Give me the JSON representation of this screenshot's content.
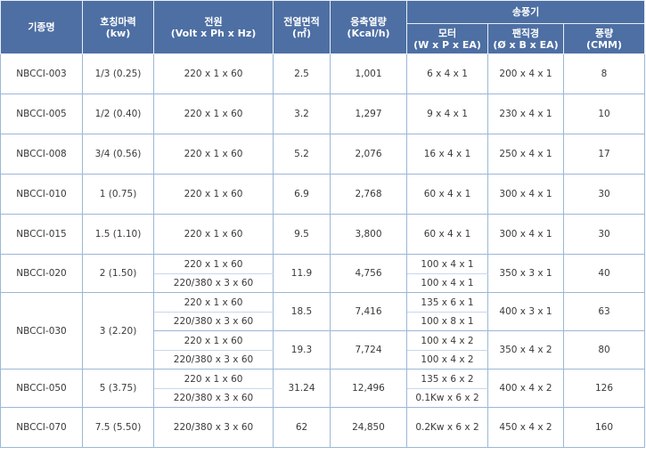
{
  "headers": {
    "model": "기종명",
    "hp_line1": "호칭마력",
    "hp_line2": "(kw)",
    "power_line1": "전원",
    "power_line2": "(Volt x Ph x Hz)",
    "area_line1": "전열면적",
    "area_line2": "(㎡)",
    "capacity_line1": "응축열량",
    "capacity_line2": "(Kcal/h)",
    "blower": "송풍기",
    "motor_line1": "모터",
    "motor_line2": "(W x P x EA)",
    "fan_line1": "팬직경",
    "fan_line2": "(Ø x B x EA)",
    "airflow_line1": "풍량",
    "airflow_line2": "(CMM)"
  },
  "rows": [
    {
      "model": "NBCCI-003",
      "hp": "1/3 (0.25)",
      "power": "220 x 1 x 60",
      "area": "2.5",
      "capacity": "1,001",
      "motor": "6 x 4 x 1",
      "fan": "200 x 4 x 1",
      "airflow": "8"
    },
    {
      "model": "NBCCI-005",
      "hp": "1/2 (0.40)",
      "power": "220 x 1 x 60",
      "area": "3.2",
      "capacity": "1,297",
      "motor": "9 x 4 x 1",
      "fan": "230 x 4 x 1",
      "airflow": "10"
    },
    {
      "model": "NBCCI-008",
      "hp": "3/4 (0.56)",
      "power": "220 x 1 x 60",
      "area": "5.2",
      "capacity": "2,076",
      "motor": "16 x 4 x 1",
      "fan": "250 x 4 x 1",
      "airflow": "17"
    },
    {
      "model": "NBCCI-010",
      "hp": "1 (0.75)",
      "power": "220 x 1 x 60",
      "area": "6.9",
      "capacity": "2,768",
      "motor": "60 x 4 x 1",
      "fan": "300 x 4 x 1",
      "airflow": "30"
    },
    {
      "model": "NBCCI-015",
      "hp": "1.5 (1.10)",
      "power": "220 x 1 x 60",
      "area": "9.5",
      "capacity": "3,800",
      "motor": "60 x 4 x 1",
      "fan": "300 x 4 x 1",
      "airflow": "30"
    },
    {
      "model": "NBCCI-020",
      "hp": "2 (1.50)",
      "power_a": "220 x 1 x 60",
      "power_b": "220/380 x 3 x 60",
      "area": "11.9",
      "capacity": "4,756",
      "motor_a": "100 x 4 x 1",
      "motor_b": "100 x 4 x 1",
      "fan": "350 x 3 x 1",
      "airflow": "40"
    },
    {
      "model": "NBCCI-030",
      "hp": "3 (2.20)",
      "power_a": "220 x 1 x 60",
      "power_b": "220/380 x 3 x 60",
      "area_a": "18.5",
      "capacity_a": "7,416",
      "motor_a": "135 x 6 x 1",
      "motor_b": "100 x 8 x 1",
      "fan_a": "400 x 3 x 1",
      "airflow_a": "63",
      "power_c": "220 x 1 x 60",
      "power_d": "220/380 x 3 x 60",
      "area_b": "19.3",
      "capacity_b": "7,724",
      "motor_c": "100 x 4 x 2",
      "motor_d": "100 x 4 x 2",
      "fan_b": "350 x 4 x 2",
      "airflow_b": "80"
    },
    {
      "model": "NBCCI-050",
      "hp": "5 (3.75)",
      "power_a": "220 x 1 x 60",
      "power_b": "220/380 x 3 x 60",
      "area": "31.24",
      "capacity": "12,496",
      "motor_a": "135 x 6 x 2",
      "motor_b": "0.1Kw x 6 x 2",
      "fan": "400 x 4 x 2",
      "airflow": "126"
    },
    {
      "model": "NBCCI-070",
      "hp": "7.5 (5.50)",
      "power": "220/380 x 3 x 60",
      "area": "62",
      "capacity": "24,850",
      "motor": "0.2Kw x 6 x 2",
      "fan": "450 x 4 x 2",
      "airflow": "160"
    }
  ]
}
